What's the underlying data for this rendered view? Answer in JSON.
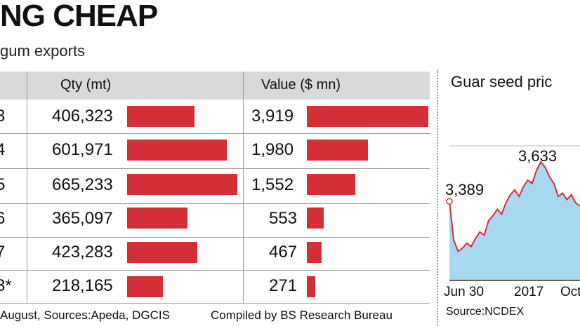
{
  "headline": "NG CHEAP",
  "subheadline": "gum exports",
  "table": {
    "columns": [
      "Qty (mt)",
      "Value ($ mn)"
    ],
    "rows": [
      {
        "year": "3",
        "qty": "406,323",
        "qty_value": 406323,
        "value": "3,919",
        "value_num": 3919
      },
      {
        "year": "4",
        "qty": "601,971",
        "qty_value": 601971,
        "value": "1,980",
        "value_num": 1980
      },
      {
        "year": "5",
        "qty": "665,233",
        "qty_value": 665233,
        "value": "1,552",
        "value_num": 1552
      },
      {
        "year": "6",
        "qty": "365,097",
        "qty_value": 365097,
        "value": "553",
        "value_num": 553
      },
      {
        "year": "7",
        "qty": "423,283",
        "qty_value": 423283,
        "value": "467",
        "value_num": 467
      },
      {
        "year": "3*",
        "qty": "218,165",
        "qty_value": 218165,
        "value": "271",
        "value_num": 271
      }
    ]
  },
  "footer": {
    "sources": "August, Sources:Apeda, DGCIS",
    "compiled": "Compiled by BS Research Bureau"
  },
  "colors": {
    "bar": "#d42e36",
    "line": "#d42e36",
    "area": "#a8d8f0",
    "header_bg": "#d9d9d9"
  },
  "chart_data": [
    {
      "type": "bar",
      "title": "Guar gum exports",
      "categories": [
        "3",
        "4",
        "5",
        "6",
        "7",
        "3*"
      ],
      "series": [
        {
          "name": "Qty (mt)",
          "values": [
            406323,
            601971,
            665233,
            365097,
            423283,
            218165
          ]
        },
        {
          "name": "Value ($ mn)",
          "values": [
            3919,
            1980,
            1552,
            553,
            467,
            271
          ]
        }
      ]
    },
    {
      "type": "area",
      "title": "Guar seed pric",
      "source": "Source:NCDEX",
      "x_ticks": [
        "Jun 30",
        "2017",
        "Oct"
      ],
      "annotations": [
        {
          "label": "3,389",
          "value": 3389
        },
        {
          "label": "3,633",
          "value": 3633
        }
      ],
      "ylim": [
        2900,
        3750
      ],
      "values": [
        3389,
        3150,
        3080,
        3100,
        3130,
        3110,
        3160,
        3200,
        3180,
        3270,
        3300,
        3340,
        3310,
        3380,
        3430,
        3460,
        3420,
        3480,
        3520,
        3500,
        3580,
        3633,
        3600,
        3540,
        3500,
        3420,
        3440,
        3400,
        3430,
        3380,
        3360
      ]
    }
  ]
}
